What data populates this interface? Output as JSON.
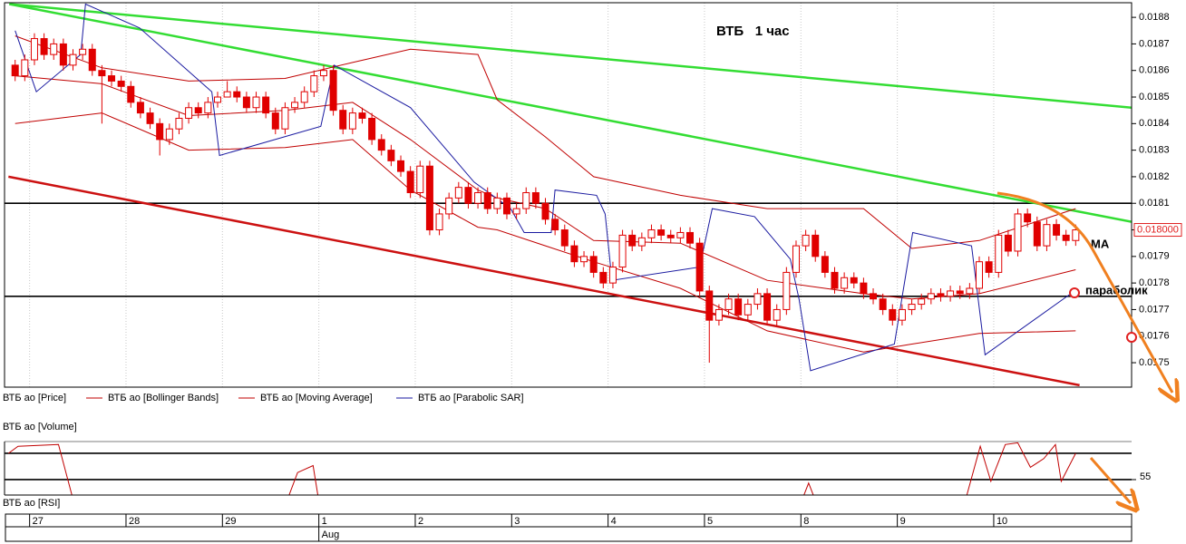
{
  "chart_data": [
    {
      "type": "candlestick",
      "title": "ВТБ   1 час",
      "name": "ВТБ ао [Price]",
      "color": "#e00000",
      "xlim": [
        -1.1,
        115.8
      ],
      "ylim": [
        0.017408,
        0.018855
      ],
      "yticks": [
        0.0175,
        0.0176,
        0.0177,
        0.0178,
        0.0179,
        {
          "value": 0.018,
          "label": "0.0180"
        },
        0.0181,
        0.0182,
        0.0183,
        0.0184,
        0.0185,
        0.0186,
        0.0187,
        0.0188
      ],
      "xticks": [
        {
          "value": 1.5,
          "label": "27"
        },
        {
          "value": 11.5,
          "label": "28"
        },
        {
          "value": 21.5,
          "label": "29"
        },
        {
          "value": 31.5,
          "label": "1"
        },
        {
          "value": 41.5,
          "label": "2"
        },
        {
          "value": 51.5,
          "label": "3"
        },
        {
          "value": 61.5,
          "label": "4"
        },
        {
          "value": 71.5,
          "label": "5"
        },
        {
          "value": 81.5,
          "label": "8"
        },
        {
          "value": 91.5,
          "label": "9"
        },
        {
          "value": 101.5,
          "label": "10"
        }
      ],
      "month_ticks": [
        {
          "value": 31.5,
          "label": "Aug"
        }
      ],
      "grid": true,
      "open": [
        0.01862,
        0.01858,
        0.01864,
        0.01872,
        0.01866,
        0.0187,
        0.01862,
        0.01866,
        0.01868,
        0.0186,
        0.01858,
        0.01856,
        0.01854,
        0.01848,
        0.01844,
        0.0184,
        0.01834,
        0.01838,
        0.01842,
        0.01846,
        0.01844,
        0.01848,
        0.0185,
        0.01852,
        0.0185,
        0.01846,
        0.0185,
        0.01844,
        0.01838,
        0.01846,
        0.01848,
        0.01852,
        0.01858,
        0.0186,
        0.01845,
        0.01838,
        0.01844,
        0.01842,
        0.01834,
        0.0183,
        0.01826,
        0.01822,
        0.01814,
        0.01824,
        0.018,
        0.01806,
        0.01812,
        0.01816,
        0.0181,
        0.01814,
        0.01808,
        0.01812,
        0.01806,
        0.01808,
        0.01814,
        0.0181,
        0.01804,
        0.018,
        0.01794,
        0.01788,
        0.0179,
        0.01784,
        0.0178,
        0.01786,
        0.01798,
        0.01794,
        0.01797,
        0.018,
        0.01798,
        0.01797,
        0.01799,
        0.01795,
        0.01777,
        0.01766,
        0.0177,
        0.01774,
        0.01768,
        0.01772,
        0.01776,
        0.01766,
        0.0177,
        0.01784,
        0.01794,
        0.01798,
        0.0179,
        0.01784,
        0.01778,
        0.01782,
        0.0178,
        0.01776,
        0.01774,
        0.0177,
        0.01766,
        0.0177,
        0.01772,
        0.01774,
        0.01776,
        0.01775,
        0.01777,
        0.01776,
        0.01778,
        0.01788,
        0.01784,
        0.01798,
        0.01792,
        0.01806,
        0.01803,
        0.01794,
        0.01802,
        0.01798,
        0.01796
      ],
      "high": [
        0.01864,
        0.01866,
        0.01874,
        0.01874,
        0.01872,
        0.01872,
        0.01868,
        0.0187,
        0.0187,
        0.01862,
        0.0186,
        0.01858,
        0.01856,
        0.0185,
        0.01846,
        0.01842,
        0.0184,
        0.01844,
        0.01848,
        0.01848,
        0.0185,
        0.01852,
        0.01856,
        0.01854,
        0.01852,
        0.01852,
        0.01852,
        0.01846,
        0.01848,
        0.0185,
        0.01854,
        0.0186,
        0.01862,
        0.01862,
        0.01847,
        0.01846,
        0.01846,
        0.01844,
        0.01836,
        0.01832,
        0.01828,
        0.01824,
        0.01826,
        0.01826,
        0.01808,
        0.01814,
        0.01818,
        0.01818,
        0.01816,
        0.01816,
        0.01814,
        0.01814,
        0.0181,
        0.01816,
        0.01816,
        0.01812,
        0.01806,
        0.01802,
        0.01796,
        0.01792,
        0.01792,
        0.01786,
        0.01788,
        0.018,
        0.018,
        0.01799,
        0.01802,
        0.01802,
        0.018,
        0.01801,
        0.01801,
        0.01797,
        0.01779,
        0.01772,
        0.01776,
        0.01776,
        0.01774,
        0.01778,
        0.01778,
        0.01772,
        0.01786,
        0.01796,
        0.018,
        0.018,
        0.01792,
        0.01786,
        0.01784,
        0.01784,
        0.01782,
        0.01778,
        0.01776,
        0.01772,
        0.01772,
        0.01774,
        0.01776,
        0.01778,
        0.01778,
        0.01779,
        0.01779,
        0.0178,
        0.0179,
        0.0179,
        0.018,
        0.018,
        0.01808,
        0.01808,
        0.01805,
        0.01804,
        0.01804,
        0.018,
        0.01802
      ],
      "low": [
        0.01856,
        0.01856,
        0.01862,
        0.01864,
        0.01864,
        0.0186,
        0.0186,
        0.01864,
        0.01858,
        0.0184,
        0.01854,
        0.01852,
        0.01846,
        0.01842,
        0.01838,
        0.01828,
        0.01832,
        0.01836,
        0.0184,
        0.01842,
        0.01842,
        0.01846,
        0.0185,
        0.01848,
        0.01844,
        0.01844,
        0.01842,
        0.01836,
        0.01836,
        0.01844,
        0.01846,
        0.0185,
        0.01856,
        0.01843,
        0.01836,
        0.01836,
        0.0184,
        0.01832,
        0.01828,
        0.01824,
        0.0182,
        0.01812,
        0.01812,
        0.01798,
        0.01798,
        0.01804,
        0.0181,
        0.01808,
        0.01808,
        0.01806,
        0.01806,
        0.01804,
        0.01804,
        0.01806,
        0.01808,
        0.01802,
        0.01798,
        0.01792,
        0.01786,
        0.01786,
        0.01782,
        0.01778,
        0.01778,
        0.01784,
        0.01792,
        0.01792,
        0.01795,
        0.01796,
        0.01795,
        0.01795,
        0.01793,
        0.01775,
        0.0175,
        0.01764,
        0.01768,
        0.01766,
        0.01766,
        0.0177,
        0.01764,
        0.01764,
        0.01768,
        0.01782,
        0.01792,
        0.01788,
        0.01782,
        0.01776,
        0.01776,
        0.01778,
        0.01774,
        0.01772,
        0.01768,
        0.01764,
        0.01764,
        0.01768,
        0.0177,
        0.01772,
        0.01773,
        0.01773,
        0.01774,
        0.01774,
        0.01776,
        0.01782,
        0.01782,
        0.0179,
        0.0179,
        0.01801,
        0.01792,
        0.01792,
        0.01796,
        0.01794,
        0.01794
      ],
      "close": [
        0.01858,
        0.01864,
        0.01872,
        0.01866,
        0.0187,
        0.01862,
        0.01866,
        0.01868,
        0.0186,
        0.01858,
        0.01856,
        0.01854,
        0.01848,
        0.01844,
        0.0184,
        0.01834,
        0.01838,
        0.01842,
        0.01846,
        0.01844,
        0.01848,
        0.0185,
        0.01852,
        0.0185,
        0.01846,
        0.0185,
        0.01844,
        0.01838,
        0.01846,
        0.01848,
        0.01852,
        0.01858,
        0.0186,
        0.01845,
        0.01838,
        0.01844,
        0.01842,
        0.01834,
        0.0183,
        0.01826,
        0.01822,
        0.01814,
        0.01824,
        0.018,
        0.01806,
        0.01812,
        0.01816,
        0.0181,
        0.01814,
        0.01808,
        0.01812,
        0.01806,
        0.01808,
        0.01814,
        0.0181,
        0.01804,
        0.018,
        0.01794,
        0.01788,
        0.0179,
        0.01784,
        0.0178,
        0.01786,
        0.01798,
        0.01794,
        0.01797,
        0.018,
        0.01798,
        0.01797,
        0.01799,
        0.01795,
        0.01777,
        0.01766,
        0.0177,
        0.01774,
        0.01768,
        0.01772,
        0.01776,
        0.01766,
        0.0177,
        0.01784,
        0.01794,
        0.01798,
        0.0179,
        0.01784,
        0.01778,
        0.01782,
        0.0178,
        0.01776,
        0.01774,
        0.0177,
        0.01766,
        0.0177,
        0.01772,
        0.01774,
        0.01776,
        0.01775,
        0.01777,
        0.01776,
        0.01778,
        0.01788,
        0.01784,
        0.01798,
        0.01792,
        0.01806,
        0.01803,
        0.01794,
        0.01802,
        0.01798,
        0.01796,
        0.018
      ],
      "bands": {
        "name": "ВТБ ао [Bollinger Bands]",
        "color": "#c00000",
        "x": [
          0,
          9,
          18,
          28,
          35,
          41,
          48,
          50,
          55,
          60,
          69,
          78,
          88,
          93,
          100,
          110
        ],
        "upper": [
          0.01873,
          0.01861,
          0.01856,
          0.01857,
          0.01863,
          0.01868,
          0.01866,
          0.01849,
          0.01835,
          0.0182,
          0.01813,
          0.01808,
          0.01808,
          0.01793,
          0.01796,
          0.01808
        ],
        "lower": [
          0.0184,
          0.01844,
          0.0183,
          0.01831,
          0.01834,
          0.01815,
          0.01801,
          0.018,
          0.01794,
          0.01788,
          0.01778,
          0.01762,
          0.01754,
          0.01757,
          0.01761,
          0.01762
        ]
      },
      "series": [
        {
          "name": "ВТБ ао [Moving Average]",
          "color": "#c00000",
          "x": [
            0,
            9,
            18,
            28,
            35,
            41,
            48,
            50,
            55,
            60,
            69,
            78,
            88,
            93,
            100,
            110
          ],
          "values": [
            0.01858,
            0.01855,
            0.01843,
            0.01845,
            0.01848,
            0.01834,
            0.01815,
            0.01812,
            0.01808,
            0.01796,
            0.01795,
            0.01781,
            0.01776,
            0.01774,
            0.01776,
            0.01785
          ]
        },
        {
          "name": "ВТБ ао [Parabolic SAR]",
          "color": "#1a1aa0",
          "x": [
            0,
            2.2,
            6.8,
            7.3,
            12.9,
            20.4,
            21.2,
            31.7,
            33.1,
            41.0,
            47.6,
            51.4,
            52.8,
            55.6,
            56.0,
            60.3,
            61.2,
            61.9,
            71.0,
            72.3,
            76.7,
            80.4,
            81.3,
            82.5,
            91.2,
            93.1,
            99.2,
            100.6,
            109.5
          ],
          "values": [
            0.01875,
            0.01852,
            0.01866,
            0.01885,
            0.01876,
            0.01852,
            0.01828,
            0.01839,
            0.01862,
            0.01846,
            0.01818,
            0.01808,
            0.01799,
            0.01799,
            0.01815,
            0.01813,
            0.01806,
            0.01781,
            0.01786,
            0.01808,
            0.01805,
            0.01789,
            0.01774,
            0.01747,
            0.01757,
            0.01799,
            0.01794,
            0.01753,
            0.01776
          ]
        }
      ],
      "trendlines": [
        {
          "color": "#33dd33",
          "x": [
            -0.6,
            115.8
          ],
          "values": [
            0.01885,
            0.01846
          ]
        },
        {
          "color": "#33dd33",
          "x": [
            -0.6,
            115.8
          ],
          "values": [
            0.01885,
            0.01803
          ]
        },
        {
          "color": "#cc1111",
          "x": [
            -0.7,
            110.4
          ],
          "values": [
            0.0182,
            0.017415
          ]
        }
      ],
      "hlines": [
        0.0181,
        0.01775
      ],
      "last": {
        "value": 0.018,
        "label": "0.018000"
      },
      "annotations": [
        {
          "text": "MA"
        },
        {
          "text": "параболик"
        }
      ]
    },
    {
      "type": "line",
      "title": "ВТБ ао [Volume]",
      "subtitle": "ВТБ ао [RSI]",
      "color": "#c00000",
      "xlim": [
        -1.1,
        115.8
      ],
      "ylim": [
        46.2,
        76.7
      ],
      "yticks": [
        55
      ],
      "hlines": [
        70,
        55
      ],
      "x": [
        -0.7,
        0.3,
        4.5,
        5.9,
        null,
        28.4,
        29.3,
        30.9,
        31.4,
        null,
        81.8,
        82.3,
        82.8,
        null,
        98.7,
        100.1,
        101.2,
        102.7,
        104.0,
        105.3,
        106.7,
        107.9,
        108.5,
        110.0
      ],
      "values": [
        70,
        74,
        75,
        46,
        null,
        46,
        59,
        63,
        46,
        null,
        46,
        53,
        46,
        null,
        46,
        74,
        54,
        75,
        76,
        62,
        67,
        75,
        54,
        70
      ]
    }
  ]
}
